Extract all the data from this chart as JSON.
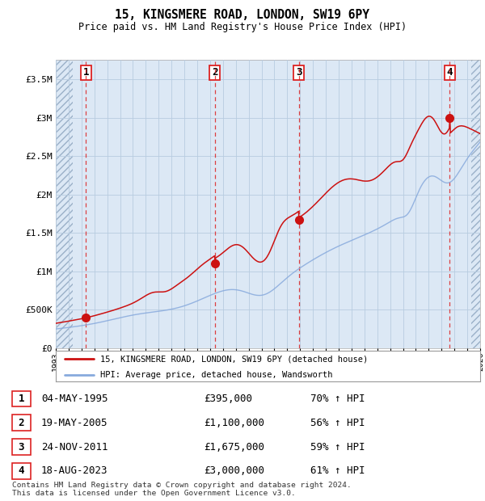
{
  "title": "15, KINGSMERE ROAD, LONDON, SW19 6PY",
  "subtitle": "Price paid vs. HM Land Registry's House Price Index (HPI)",
  "xlim": [
    1993,
    2026
  ],
  "ylim": [
    0,
    3750000
  ],
  "yticks": [
    0,
    500000,
    1000000,
    1500000,
    2000000,
    2500000,
    3000000,
    3500000
  ],
  "ytick_labels": [
    "£0",
    "£500K",
    "£1M",
    "£1.5M",
    "£2M",
    "£2.5M",
    "£3M",
    "£3.5M"
  ],
  "sale_dates": [
    1995.34,
    2005.38,
    2011.9,
    2023.63
  ],
  "sale_prices": [
    395000,
    1100000,
    1675000,
    3000000
  ],
  "sale_numbers": [
    "1",
    "2",
    "3",
    "4"
  ],
  "vline_color": "#dd2222",
  "sale_color": "#cc1111",
  "hpi_color": "#88aadd",
  "legend_entries": [
    "15, KINGSMERE ROAD, LONDON, SW19 6PY (detached house)",
    "HPI: Average price, detached house, Wandsworth"
  ],
  "table_rows": [
    [
      "1",
      "04-MAY-1995",
      "£395,000",
      "70% ↑ HPI"
    ],
    [
      "2",
      "19-MAY-2005",
      "£1,100,000",
      "56% ↑ HPI"
    ],
    [
      "3",
      "24-NOV-2011",
      "£1,675,000",
      "59% ↑ HPI"
    ],
    [
      "4",
      "18-AUG-2023",
      "£3,000,000",
      "61% ↑ HPI"
    ]
  ],
  "footnote": "Contains HM Land Registry data © Crown copyright and database right 2024.\nThis data is licensed under the Open Government Licence v3.0.",
  "plot_bg": "#dce8f5",
  "grid_color": "#b8cce0",
  "hatch_left_end": 1994.3,
  "hatch_right_start": 2025.3,
  "data_start": 1993.0,
  "data_end": 2026.0
}
